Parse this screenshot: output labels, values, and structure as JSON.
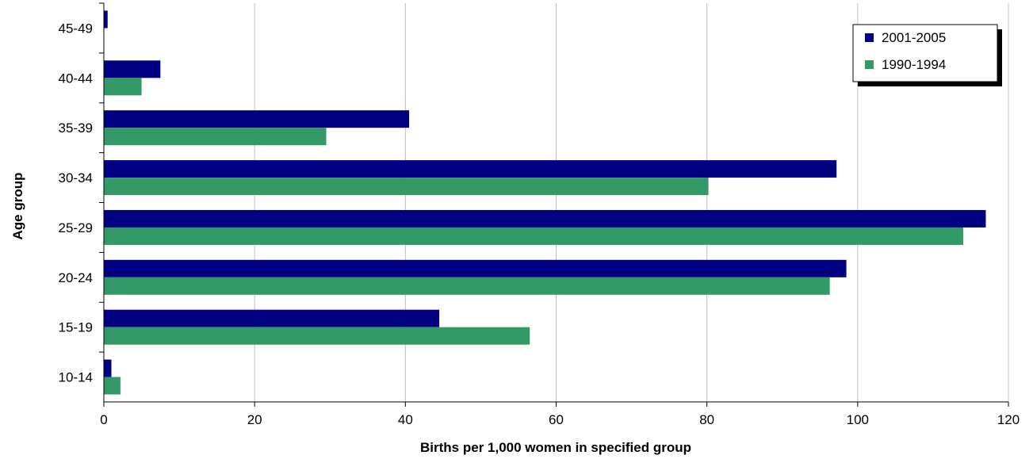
{
  "chart_data": {
    "type": "bar",
    "orientation": "horizontal",
    "categories": [
      "10-14",
      "15-19",
      "20-24",
      "25-29",
      "30-34",
      "35-39",
      "40-44",
      "45-49"
    ],
    "series": [
      {
        "name": "2001-2005",
        "color": "#000080",
        "values": [
          1.0,
          44.5,
          98.5,
          117.0,
          97.2,
          40.5,
          7.5,
          0.5
        ]
      },
      {
        "name": "1990-1994",
        "color": "#339966",
        "values": [
          2.2,
          56.5,
          96.3,
          114.0,
          80.2,
          29.5,
          5.0,
          0.0
        ]
      }
    ],
    "xlabel": "Births per 1,000 women in specified group",
    "ylabel": "Age group",
    "xlim": [
      0,
      120
    ],
    "xticks": [
      "0",
      "20",
      "40",
      "60",
      "80",
      "100",
      "120"
    ],
    "grid": "vertical",
    "legend_position": "top-right"
  }
}
